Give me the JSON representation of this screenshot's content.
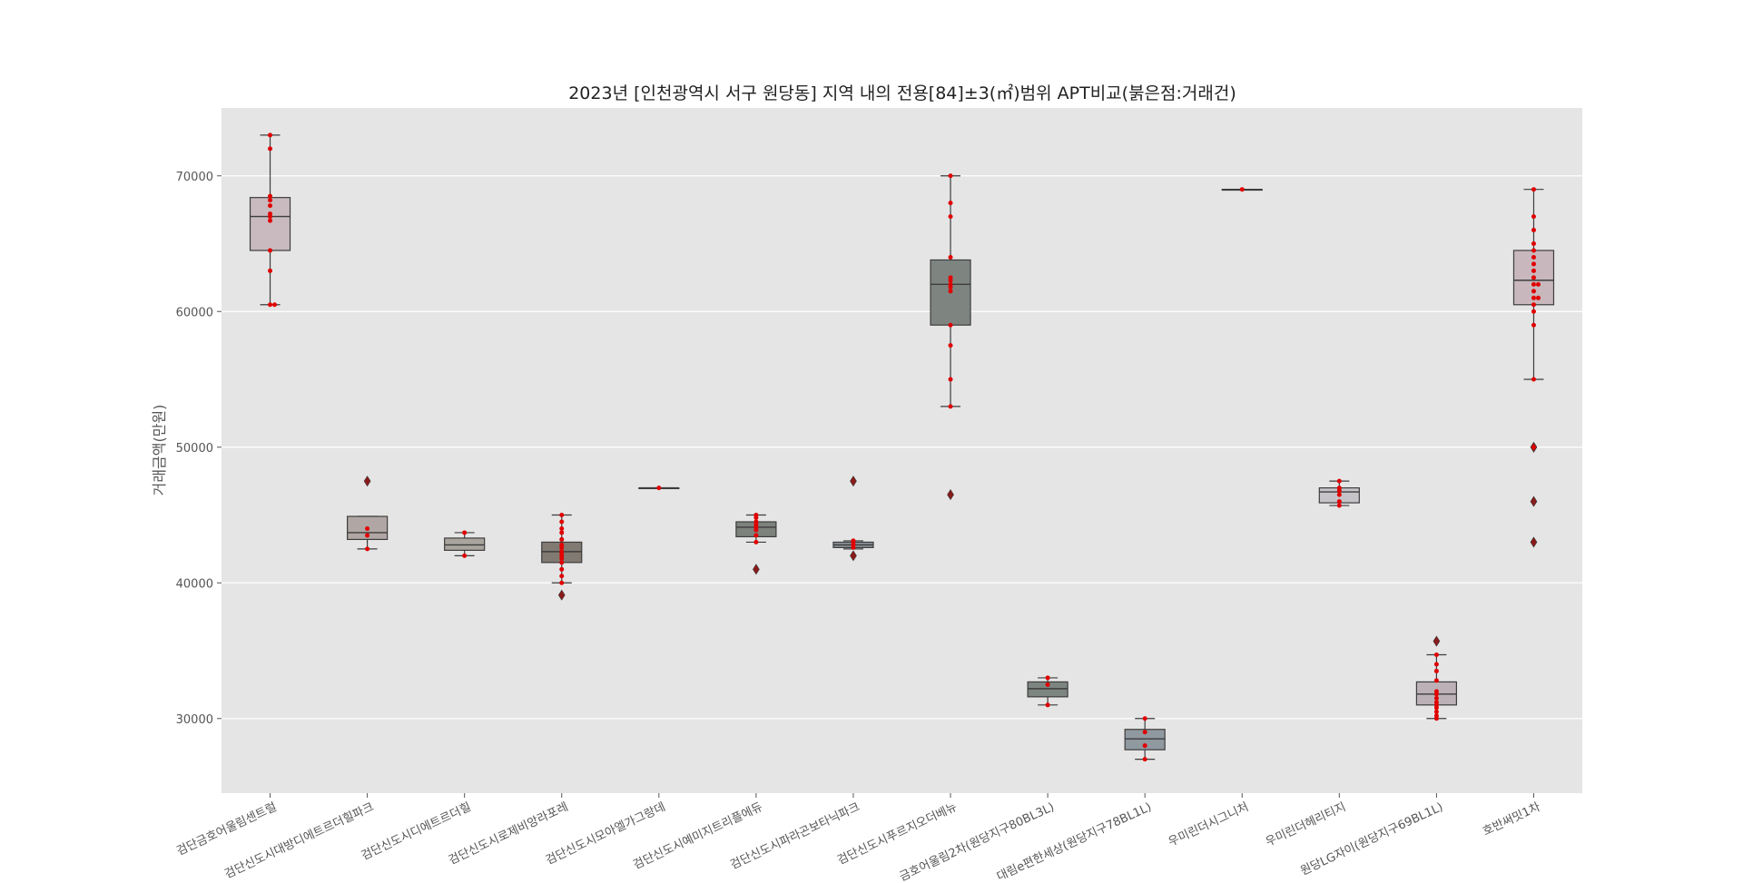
{
  "chart_data": {
    "type": "box",
    "title": "2023년 [인천광역시 서구 원당동] 지역 내의  전용[84]±3(㎡)범위 APT비교(붉은점:거래건)",
    "xlabel": "",
    "ylabel": "거래금액(만원)",
    "ylim": [
      24500,
      75000
    ],
    "yticks": [
      30000,
      40000,
      50000,
      60000,
      70000
    ],
    "ytick_labels": [
      "30000",
      "40000",
      "50000",
      "60000",
      "70000"
    ],
    "grid": true,
    "colors": {
      "background": "#e5e5e5",
      "grid": "#ffffff",
      "point": "#e00000",
      "outlier": "#8b1a1a",
      "edge": "#3d3d3d"
    },
    "categories": [
      "검단금호어울림센트럴",
      "검단신도시대방디에트르더힐파크",
      "검단신도시디에트르더힐",
      "검단신도시로제비앙라포레",
      "검단신도시모아엘가그랑데",
      "검단신도시예미지트리플에듀",
      "검단신도시파라곤보타닉파크",
      "검단신도시푸르지오더베뉴",
      "금호어울림2차(원당지구80BL3L)",
      "대림e편한세상(원당지구78BL1L)",
      "우미린더시그니처",
      "우미린더헤리티지",
      "원당LG자이(원당지구69BL1L)",
      "호반써밋1차"
    ],
    "boxes": [
      {
        "color": "#c8babe",
        "whislo": 60500,
        "q1": 64500,
        "med": 67000,
        "q3": 68400,
        "whishi": 73000,
        "fliers": [],
        "points": [
          73000,
          72000,
          68500,
          68200,
          67800,
          67200,
          67000,
          66700,
          64500,
          63000,
          60500,
          60500
        ]
      },
      {
        "color": "#b0a7a4",
        "whislo": 42500,
        "q1": 43200,
        "med": 43700,
        "q3": 44900,
        "whishi": 44900,
        "fliers": [
          47500
        ],
        "points": [
          44000,
          43500,
          42500
        ]
      },
      {
        "color": "#a9a49e",
        "whislo": 42000,
        "q1": 42400,
        "med": 42800,
        "q3": 43300,
        "whishi": 43700,
        "fliers": [],
        "points": [
          43700,
          42000
        ]
      },
      {
        "color": "#817a72",
        "whislo": 40000,
        "q1": 41500,
        "med": 42300,
        "q3": 43000,
        "whishi": 45000,
        "fliers": [
          39100
        ],
        "points": [
          45000,
          44500,
          44000,
          43700,
          43200,
          42800,
          42600,
          42300,
          42200,
          42000,
          41800,
          41500,
          41000,
          40500,
          40000
        ]
      },
      {
        "color": "#b4b1ae",
        "whislo": 47000,
        "q1": 47000,
        "med": 47000,
        "q3": 47000,
        "whishi": 47000,
        "fliers": [],
        "points": [
          47000
        ]
      },
      {
        "color": "#7d827d",
        "whislo": 43000,
        "q1": 43400,
        "med": 44100,
        "q3": 44500,
        "whishi": 45000,
        "fliers": [
          41000
        ],
        "points": [
          45000,
          44800,
          44500,
          44300,
          44100,
          43900,
          43500,
          43000
        ]
      },
      {
        "color": "#8b9196",
        "whislo": 42500,
        "q1": 42600,
        "med": 42800,
        "q3": 43000,
        "whishi": 43100,
        "fliers": [
          47500,
          42000
        ],
        "points": [
          43100,
          43000,
          42800,
          42600
        ]
      },
      {
        "color": "#7e8581",
        "whislo": 53000,
        "q1": 59000,
        "med": 62000,
        "q3": 63800,
        "whishi": 70000,
        "fliers": [
          46500
        ],
        "points": [
          70000,
          68000,
          67000,
          64000,
          62500,
          62300,
          62000,
          61800,
          61500,
          59000,
          57500,
          55000,
          53000
        ]
      },
      {
        "color": "#7d8581",
        "whislo": 31000,
        "q1": 31600,
        "med": 32200,
        "q3": 32700,
        "whishi": 33000,
        "fliers": [],
        "points": [
          33000,
          32500,
          31000
        ]
      },
      {
        "color": "#9098a0",
        "whislo": 27000,
        "q1": 27700,
        "med": 28500,
        "q3": 29200,
        "whishi": 30000,
        "fliers": [],
        "points": [
          30000,
          29000,
          28000,
          27000
        ]
      },
      {
        "color": "#b5b7b8",
        "whislo": 69000,
        "q1": 69000,
        "med": 69000,
        "q3": 69000,
        "whishi": 69000,
        "fliers": [],
        "points": [
          69000
        ]
      },
      {
        "color": "#c6c3c8",
        "whislo": 45700,
        "q1": 45900,
        "med": 46700,
        "q3": 47000,
        "whishi": 47500,
        "fliers": [],
        "points": [
          47500,
          47000,
          46800,
          46500,
          46000,
          45700
        ]
      },
      {
        "color": "#bcb1b6",
        "whislo": 30000,
        "q1": 31000,
        "med": 31800,
        "q3": 32700,
        "whishi": 34700,
        "fliers": [
          35700
        ],
        "points": [
          34700,
          34000,
          33500,
          32800,
          32000,
          31800,
          31500,
          31200,
          31000,
          30800,
          30500,
          30200,
          30000
        ]
      },
      {
        "color": "#c8b8bd",
        "whislo": 55000,
        "q1": 60500,
        "med": 62300,
        "q3": 64500,
        "whishi": 69000,
        "fliers": [
          50000,
          46000,
          43000
        ],
        "points": [
          69000,
          67000,
          66000,
          65000,
          64500,
          64000,
          63500,
          63000,
          62500,
          62000,
          62000,
          61500,
          61000,
          61000,
          60500,
          60000,
          59000,
          55000,
          50000
        ]
      }
    ]
  }
}
